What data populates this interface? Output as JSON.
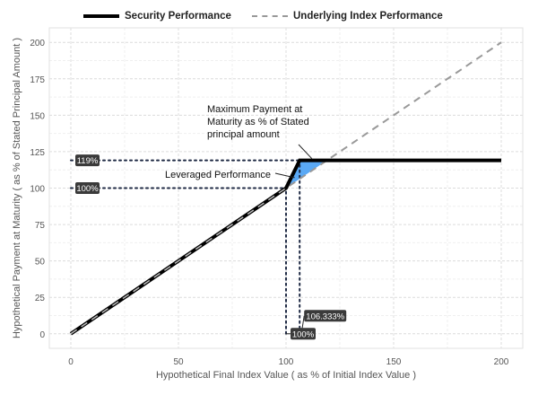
{
  "chart_data": {
    "type": "line",
    "xlabel": "Hypothetical Final Index Value ( as % of Initial Index Value )",
    "ylabel": "Hypothetical Payment at Maturity ( as % of Stated Principal Amount )",
    "xlim": [
      -10,
      210
    ],
    "ylim": [
      -10,
      210
    ],
    "x_ticks": [
      0,
      50,
      100,
      150,
      200
    ],
    "y_ticks": [
      0,
      25,
      50,
      75,
      100,
      125,
      150,
      175,
      200
    ],
    "grid": true,
    "legend_position": "top",
    "series": [
      {
        "name": "Security Performance",
        "style": "solid",
        "color": "#000000",
        "x": [
          0,
          100,
          106.333,
          200
        ],
        "y": [
          0,
          100,
          119,
          119
        ]
      },
      {
        "name": "Underlying Index Performance",
        "style": "dashed",
        "color": "#999999",
        "x": [
          0,
          200
        ],
        "y": [
          0,
          200
        ]
      }
    ],
    "shaded_region": {
      "color": "#5aa9f5",
      "points": [
        [
          100,
          100
        ],
        [
          106.333,
          119
        ],
        [
          119,
          119
        ],
        [
          106.333,
          106.333
        ]
      ]
    },
    "reference_lines": [
      {
        "orientation": "horizontal",
        "value": 119,
        "x_from": 0,
        "x_to": 106.333
      },
      {
        "orientation": "horizontal",
        "value": 100,
        "x_from": 0,
        "x_to": 100
      },
      {
        "orientation": "vertical",
        "value": 100,
        "y_from": 0,
        "y_to": 100
      },
      {
        "orientation": "vertical",
        "value": 106.333,
        "y_from": 0,
        "y_to": 119
      }
    ],
    "value_tags": [
      {
        "text": "119%",
        "axis": "y",
        "value": 119
      },
      {
        "text": "100%",
        "axis": "y",
        "value": 100
      },
      {
        "text": "106.333%",
        "axis": "x",
        "value": 106.333
      },
      {
        "text": "100%",
        "axis": "x",
        "value": 100
      }
    ],
    "annotations": [
      {
        "lines": [
          "Maximum Payment at",
          "Maturity as % of Stated",
          "principal amount"
        ],
        "target": [
          112,
          119
        ]
      },
      {
        "lines": [
          "Leveraged Performance"
        ],
        "target": [
          104,
          109
        ]
      }
    ]
  }
}
